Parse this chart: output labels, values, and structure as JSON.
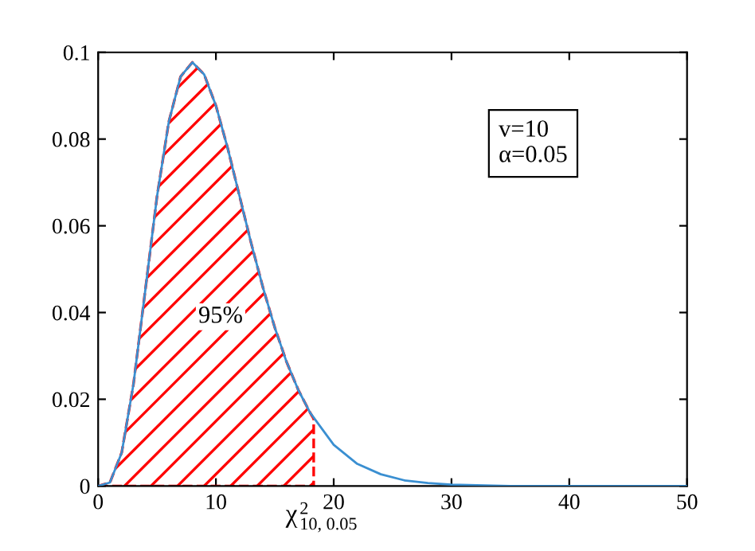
{
  "chart_data": {
    "type": "line",
    "series": [
      {
        "color": "#3a8fd1",
        "x": [
          0,
          1,
          2,
          3,
          4,
          5,
          6,
          7,
          8,
          9,
          10,
          11,
          12,
          13,
          14,
          15,
          16,
          17,
          18,
          20,
          22,
          24,
          26,
          28,
          30,
          35,
          40,
          50
        ],
        "values": [
          0,
          0.0008,
          0.0077,
          0.0235,
          0.0451,
          0.0668,
          0.084,
          0.0944,
          0.0977,
          0.0949,
          0.0877,
          0.0779,
          0.0669,
          0.0559,
          0.0457,
          0.0365,
          0.0286,
          0.0221,
          0.0169,
          0.0095,
          0.0051,
          0.0027,
          0.0013,
          0.0007,
          0.0003,
          0,
          0,
          0
        ]
      },
      {
        "type": "area",
        "color": "#ff0000",
        "line_style": "dashed",
        "x": [
          0,
          1,
          2,
          3,
          4,
          5,
          6,
          7,
          8,
          9,
          10,
          11,
          12,
          13,
          14,
          15,
          16,
          17,
          18,
          18.3
        ],
        "values": [
          0,
          0.0008,
          0.0077,
          0.0235,
          0.0451,
          0.0668,
          0.084,
          0.0944,
          0.0977,
          0.0949,
          0.0877,
          0.0779,
          0.0669,
          0.0559,
          0.0457,
          0.0365,
          0.0286,
          0.0221,
          0.0169,
          0.0155
        ]
      }
    ],
    "xlim": [
      0,
      50
    ],
    "ylim": [
      0,
      0.1
    ],
    "xticks": [
      0,
      10,
      20,
      30,
      40,
      50
    ],
    "yticks": [
      0,
      0.02,
      0.04,
      0.06,
      0.08,
      0.1
    ],
    "annotations": [
      {
        "text": "χ$^{2}$$_{10, 0.05}$",
        "x": 18.3,
        "y": 0
      },
      "95%",
      "v=10\nα=0.05"
    ],
    "grid": false,
    "legend": false
  }
}
